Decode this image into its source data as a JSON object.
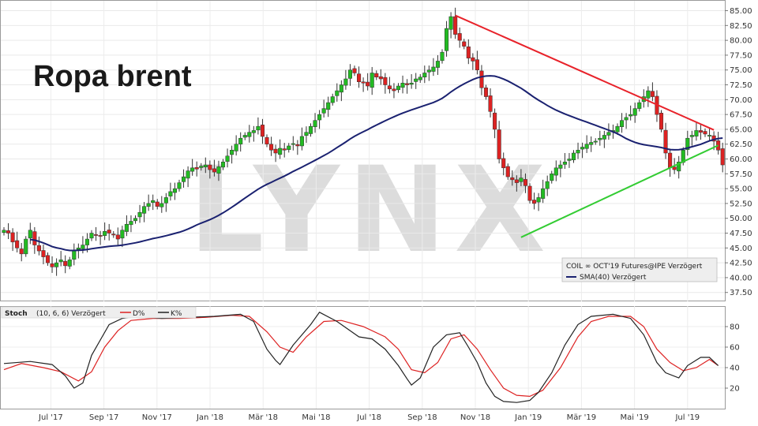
{
  "chart_data": [
    {
      "type": "candlestick",
      "title": "Ropa brent",
      "watermark": "LYNX",
      "y_ticks": [
        "85.00",
        "82.50",
        "80.00",
        "77.50",
        "75.00",
        "72.50",
        "70.00",
        "67.50",
        "65.00",
        "62.50",
        "60.00",
        "57.50",
        "55.00",
        "52.50",
        "50.00",
        "47.50",
        "45.00",
        "42.50",
        "40.00",
        "37.50"
      ],
      "ylim": [
        36,
        86
      ],
      "x_tick_labels": [
        "Jul '17",
        "Sep '17",
        "Nov '17",
        "Jan '18",
        "Mär '18",
        "Mai '18",
        "Jul '18",
        "Sep '18",
        "Nov '18",
        "Jan '19",
        "Mär '19",
        "Mai '19",
        "Jul '19"
      ],
      "legend": {
        "instrument": "COIL ∞ OCT'19 Futures@IPE Verzögert",
        "sma_label": "SMA(40) Verzögert"
      },
      "colors": {
        "up": "#22bb22",
        "down": "#dd2222",
        "sma": "#1a2170",
        "trend_down": "#e8222a",
        "trend_up": "#33cc33"
      },
      "closes": [
        48,
        47.5,
        46,
        45,
        44,
        46.5,
        48,
        45.5,
        44.5,
        43.5,
        42.5,
        41.8,
        42.5,
        43,
        42,
        43,
        44.5,
        45,
        45.5,
        46.5,
        47.5,
        47.2,
        47,
        47.8,
        47.5,
        47.2,
        46.5,
        48,
        49,
        49.5,
        50,
        51,
        52,
        52.5,
        53,
        52,
        52.5,
        53.5,
        54.5,
        55,
        56,
        57,
        58,
        58.5,
        58.3,
        58.8,
        59,
        58.2,
        57.8,
        58.7,
        59.5,
        60.5,
        61.5,
        62.5,
        63.5,
        64,
        64.5,
        64.8,
        65.5,
        63.8,
        62.5,
        61.5,
        61,
        61.8,
        61.5,
        62.2,
        62.6,
        62.2,
        63.8,
        64.5,
        65.5,
        66.5,
        67.5,
        68.5,
        69.5,
        70.5,
        71.5,
        72.5,
        73.5,
        75,
        74.5,
        73,
        72.8,
        72.3,
        74.5,
        73.8,
        73.5,
        72.5,
        71.8,
        71.5,
        72.3,
        72.8,
        72.5,
        72.8,
        73.5,
        73.8,
        74.5,
        75,
        75.5,
        76.5,
        78,
        82,
        84,
        81,
        80,
        79,
        77,
        76.5,
        75,
        72,
        70.5,
        68,
        65,
        60,
        58.5,
        57,
        56.5,
        56,
        56.8,
        55.5,
        53,
        52.5,
        53.5,
        55,
        56.2,
        57.5,
        58.5,
        59,
        59.5,
        60,
        61,
        61.5,
        62,
        62.5,
        62.8,
        63,
        63.5,
        64,
        64.5,
        64.8,
        65.5,
        66.5,
        67,
        67.5,
        68.5,
        69.5,
        70.5,
        71.5,
        70.5,
        67.5,
        65,
        61,
        58.5,
        58.2,
        59.5,
        61.5,
        63.5,
        64,
        64.8,
        64.5,
        64.2,
        64,
        63,
        61.5,
        59
      ],
      "sma_start": 6,
      "sma_length": 40,
      "trend_lines": [
        {
          "name": "resistance",
          "x": [
            103,
            162
          ],
          "y": [
            84.2,
            64.9
          ]
        },
        {
          "name": "support",
          "x": [
            118,
            163
          ],
          "y": [
            46.8,
            62.3
          ]
        }
      ]
    },
    {
      "type": "line",
      "indicator": "Stoch",
      "params": "(10, 6, 6) Verzögert",
      "series_names": [
        "D%",
        "K%"
      ],
      "colors": {
        "d": "#dd2222",
        "k": "#222222"
      },
      "y_ticks": [
        "80",
        "60",
        "40",
        "20"
      ],
      "ylim": [
        0,
        100
      ],
      "k": [
        [
          0,
          44
        ],
        [
          6,
          46
        ],
        [
          11,
          43
        ],
        [
          14,
          32
        ],
        [
          16,
          20
        ],
        [
          18,
          25
        ],
        [
          20,
          52
        ],
        [
          24,
          82
        ],
        [
          27,
          88
        ],
        [
          30,
          90
        ],
        [
          36,
          88
        ],
        [
          42,
          89
        ],
        [
          48,
          90
        ],
        [
          54,
          92
        ],
        [
          57,
          85
        ],
        [
          60,
          58
        ],
        [
          62,
          47
        ],
        [
          63,
          43
        ],
        [
          66,
          62
        ],
        [
          70,
          82
        ],
        [
          72,
          94
        ],
        [
          76,
          85
        ],
        [
          81,
          70
        ],
        [
          84,
          68
        ],
        [
          87,
          58
        ],
        [
          90,
          42
        ],
        [
          92,
          29
        ],
        [
          93,
          23
        ],
        [
          95,
          30
        ],
        [
          98,
          60
        ],
        [
          101,
          72
        ],
        [
          104,
          74
        ],
        [
          106,
          60
        ],
        [
          108,
          45
        ],
        [
          110,
          25
        ],
        [
          112,
          12
        ],
        [
          114,
          7
        ],
        [
          117,
          6
        ],
        [
          120,
          8
        ],
        [
          122,
          16
        ],
        [
          125,
          35
        ],
        [
          128,
          62
        ],
        [
          131,
          82
        ],
        [
          134,
          90
        ],
        [
          139,
          92
        ],
        [
          143,
          88
        ],
        [
          146,
          72
        ],
        [
          149,
          45
        ],
        [
          151,
          35
        ],
        [
          154,
          30
        ],
        [
          156,
          42
        ],
        [
          159,
          50
        ],
        [
          161,
          50
        ],
        [
          163,
          42
        ]
      ],
      "d": [
        [
          0,
          38
        ],
        [
          4,
          44
        ],
        [
          9,
          40
        ],
        [
          13,
          36
        ],
        [
          17,
          27
        ],
        [
          20,
          36
        ],
        [
          23,
          60
        ],
        [
          26,
          76
        ],
        [
          29,
          86
        ],
        [
          34,
          88
        ],
        [
          40,
          88
        ],
        [
          46,
          89
        ],
        [
          52,
          91
        ],
        [
          56,
          90
        ],
        [
          60,
          75
        ],
        [
          63,
          60
        ],
        [
          66,
          55
        ],
        [
          69,
          70
        ],
        [
          73,
          85
        ],
        [
          77,
          86
        ],
        [
          82,
          80
        ],
        [
          87,
          70
        ],
        [
          90,
          58
        ],
        [
          93,
          38
        ],
        [
          96,
          35
        ],
        [
          99,
          45
        ],
        [
          102,
          68
        ],
        [
          105,
          72
        ],
        [
          108,
          58
        ],
        [
          111,
          38
        ],
        [
          114,
          20
        ],
        [
          117,
          13
        ],
        [
          120,
          12
        ],
        [
          123,
          18
        ],
        [
          127,
          40
        ],
        [
          131,
          70
        ],
        [
          134,
          85
        ],
        [
          138,
          90
        ],
        [
          143,
          90
        ],
        [
          146,
          80
        ],
        [
          149,
          58
        ],
        [
          152,
          45
        ],
        [
          155,
          37
        ],
        [
          158,
          40
        ],
        [
          161,
          48
        ],
        [
          163,
          42
        ]
      ]
    }
  ]
}
